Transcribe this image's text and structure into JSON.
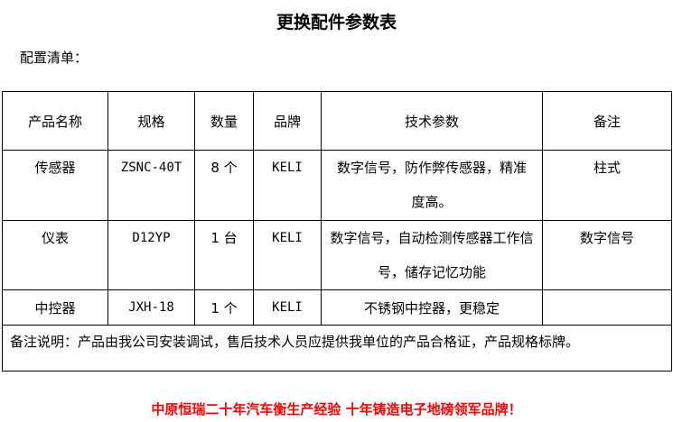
{
  "title": "更换配件参数表",
  "subtitle": "配置清单：",
  "table": {
    "headers": [
      "产品名称",
      "规格",
      "数量",
      "品牌",
      "技术参数",
      "备注"
    ],
    "rows": [
      {
        "name": "传感器",
        "spec": "ZSNC-40T",
        "qty": "8 个",
        "brand": "KELI",
        "tech": "数字信号，防作弊传感器，精准度高。",
        "remark": "柱式"
      },
      {
        "name": "仪表",
        "spec": "D12YP",
        "qty": "1 台",
        "brand": "KELI",
        "tech": "数字信号，自动检测传感器工作信号，储存记忆功能",
        "remark": "数字信号"
      },
      {
        "name": "中控器",
        "spec": "JXH-18",
        "qty": "1 个",
        "brand": "KELI",
        "tech": "不锈钢中控器，更稳定",
        "remark": ""
      }
    ],
    "note": "备注说明：产品由我公司安装调试，售后技术人员应提供我单位的产品合格证，产品规格标牌。"
  },
  "slogan": "中原恒瑞二十年汽车衡生产经验  十年铸造电子地磅领军品牌！",
  "colors": {
    "slogan": "#ff0000"
  }
}
